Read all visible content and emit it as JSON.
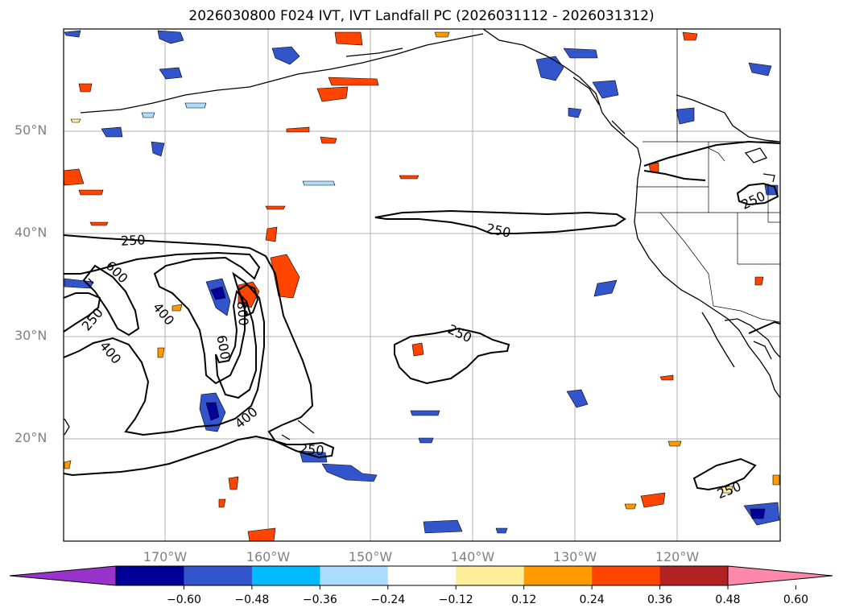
{
  "title": "2026030800 F024 IVT, IVT Landfall PC (2026031112 - 2026031312)",
  "lat_labels": [
    "50°N",
    "40°N",
    "30°N",
    "20°N"
  ],
  "lon_labels": [
    "170°W",
    "160°W",
    "150°W",
    "140°W",
    "130°W",
    "120°W"
  ],
  "contour_labels": [
    "250",
    "250",
    "250",
    "250",
    "250",
    "250",
    "250",
    "400",
    "400",
    "400",
    "600",
    "600",
    "800"
  ],
  "colorbar": {
    "tick_labels": [
      "−0.60",
      "−0.48",
      "−0.36",
      "−0.24",
      "−0.12",
      "0.12",
      "0.24",
      "0.36",
      "0.48",
      "0.60"
    ],
    "colors": [
      "#9933cc",
      "#000099",
      "#3355cc",
      "#00bbff",
      "#aaddff",
      "#ffffff",
      "#ffee99",
      "#ff9900",
      "#ff4400",
      "#b22222",
      "#ff88aa"
    ]
  },
  "colors": {
    "contour": "#000000",
    "gridline": "#b0b0b0",
    "axis_label": "#808080"
  }
}
